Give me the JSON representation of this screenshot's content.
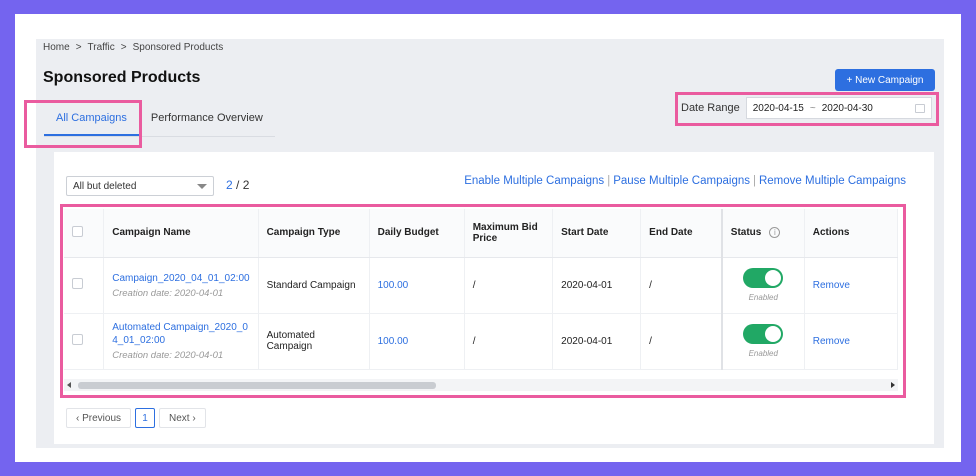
{
  "breadcrumb": [
    "Home",
    ">",
    "Traffic",
    ">",
    "Sponsored Products"
  ],
  "page_title": "Sponsored Products",
  "new_campaign_button": "+ New Campaign",
  "tabs": [
    {
      "label": "All Campaigns",
      "active": true
    },
    {
      "label": "Performance Overview",
      "active": false
    }
  ],
  "date_range": {
    "label": "Date Range",
    "start": "2020-04-15",
    "separator": "~",
    "end": "2020-04-30"
  },
  "filter": {
    "selected": "All but deleted"
  },
  "count": {
    "shown": "2",
    "separator": "/",
    "total": "2"
  },
  "bulk_actions": [
    "Enable Multiple Campaigns",
    "Pause Multiple Campaigns",
    "Remove Multiple Campaigns"
  ],
  "bulk_separator": "|",
  "columns": [
    "Campaign Name",
    "Campaign Type",
    "Daily Budget",
    "Maximum Bid Price",
    "Start Date",
    "End Date",
    "Status",
    "Actions"
  ],
  "rows": [
    {
      "name": "Campaign_2020_04_01_02:00",
      "creation": "Creation date: 2020-04-01",
      "type": "Standard Campaign",
      "budget": "100.00",
      "max_bid": "/",
      "start": "2020-04-01",
      "end": "/",
      "status": "Enabled",
      "action": "Remove"
    },
    {
      "name": "Automated Campaign_2020_04_01_02:00",
      "creation": "Creation date: 2020-04-01",
      "type": "Automated Campaign",
      "budget": "100.00",
      "max_bid": "/",
      "start": "2020-04-01",
      "end": "/",
      "status": "Enabled",
      "action": "Remove"
    }
  ],
  "pagination": {
    "prev": "‹ Previous",
    "current": "1",
    "next": "Next ›"
  },
  "colors": {
    "accent": "#2d6fe0",
    "toggle_on": "#21a865",
    "highlight": "#ea5b9f",
    "background": "#7464ef"
  }
}
